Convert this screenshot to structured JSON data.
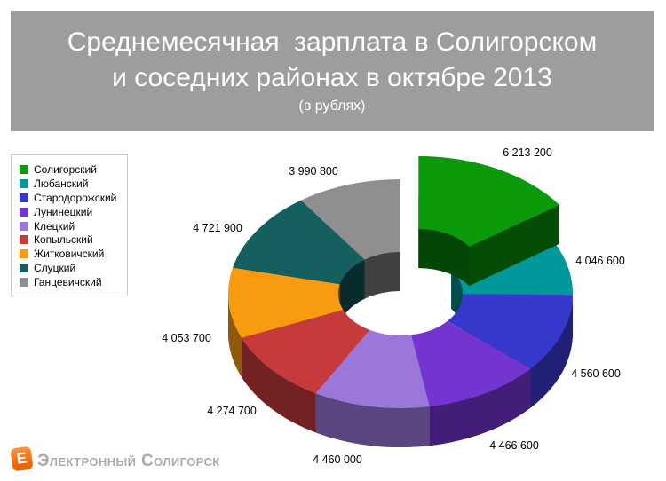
{
  "title": {
    "line1": "Среднемесячная  зарплата в Солигорском",
    "line2": "и соседних районах в октябре 2013",
    "line3": "(в рублях)"
  },
  "footer": {
    "brand": "Электронный Солигорск",
    "logo_letter": "E"
  },
  "colors": {
    "banner_bg": "#9D9D9D",
    "banner_text": "#FFFFFF",
    "value_label_text": "#000000",
    "legend_border": "#C9C9C9",
    "brand_text": "#ABABAB",
    "logo_orange": "#F07818"
  },
  "chart_data": {
    "type": "pie",
    "variant": "3d-donut-exploded-first-slice",
    "title": "Среднемесячная зарплата в Солигорском и соседних районах в октябре 2013 (в рублях)",
    "unit": "рублей",
    "legend_position": "left",
    "start_angle_deg": 0,
    "direction": "clockwise",
    "slices": [
      {
        "name": "Солигорский",
        "value": 6213200,
        "label": "6 213 200",
        "color": "#0A9A0A",
        "exploded": true
      },
      {
        "name": "Любанский",
        "value": 4046600,
        "label": "4 046 600",
        "color": "#00989B",
        "exploded": false
      },
      {
        "name": "Стародорожский",
        "value": 4560600,
        "label": "4 560 600",
        "color": "#3638CB",
        "exploded": false
      },
      {
        "name": "Лунинецкий",
        "value": 4466600,
        "label": "4 466 600",
        "color": "#7434D0",
        "exploded": false
      },
      {
        "name": "Клецкий",
        "value": 4460000,
        "label": "4 460 000",
        "color": "#9C77DA",
        "exploded": false
      },
      {
        "name": "Копыльский",
        "value": 4274700,
        "label": "4 274 700",
        "color": "#C73A3C",
        "exploded": false
      },
      {
        "name": "Житковичский",
        "value": 4053700,
        "label": "4 053 700",
        "color": "#F89B0E",
        "exploded": false
      },
      {
        "name": "Слуцкий",
        "value": 4721900,
        "label": "4 721 900",
        "color": "#15605F",
        "exploded": false
      },
      {
        "name": "Ганцевичский",
        "value": 3990800,
        "label": "3 990 800",
        "color": "#8F8F8F",
        "exploded": false
      }
    ]
  }
}
